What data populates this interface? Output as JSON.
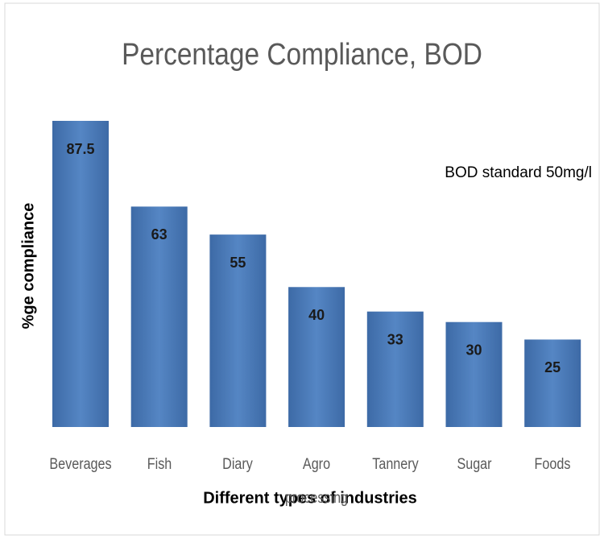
{
  "chart_data": {
    "type": "bar",
    "title": "Percentage Compliance, BOD",
    "annotation": "BOD standard 50mg/l",
    "y_label": "%ge compliance",
    "x_label": "Different types of industries",
    "categories": [
      "Beverages",
      "Fish",
      "Diary",
      "Agro processing",
      "Tannery",
      "Sugar",
      "Foods"
    ],
    "values": [
      87.5,
      63,
      55,
      40,
      33,
      30,
      25
    ],
    "color": "#4a7ab8"
  }
}
